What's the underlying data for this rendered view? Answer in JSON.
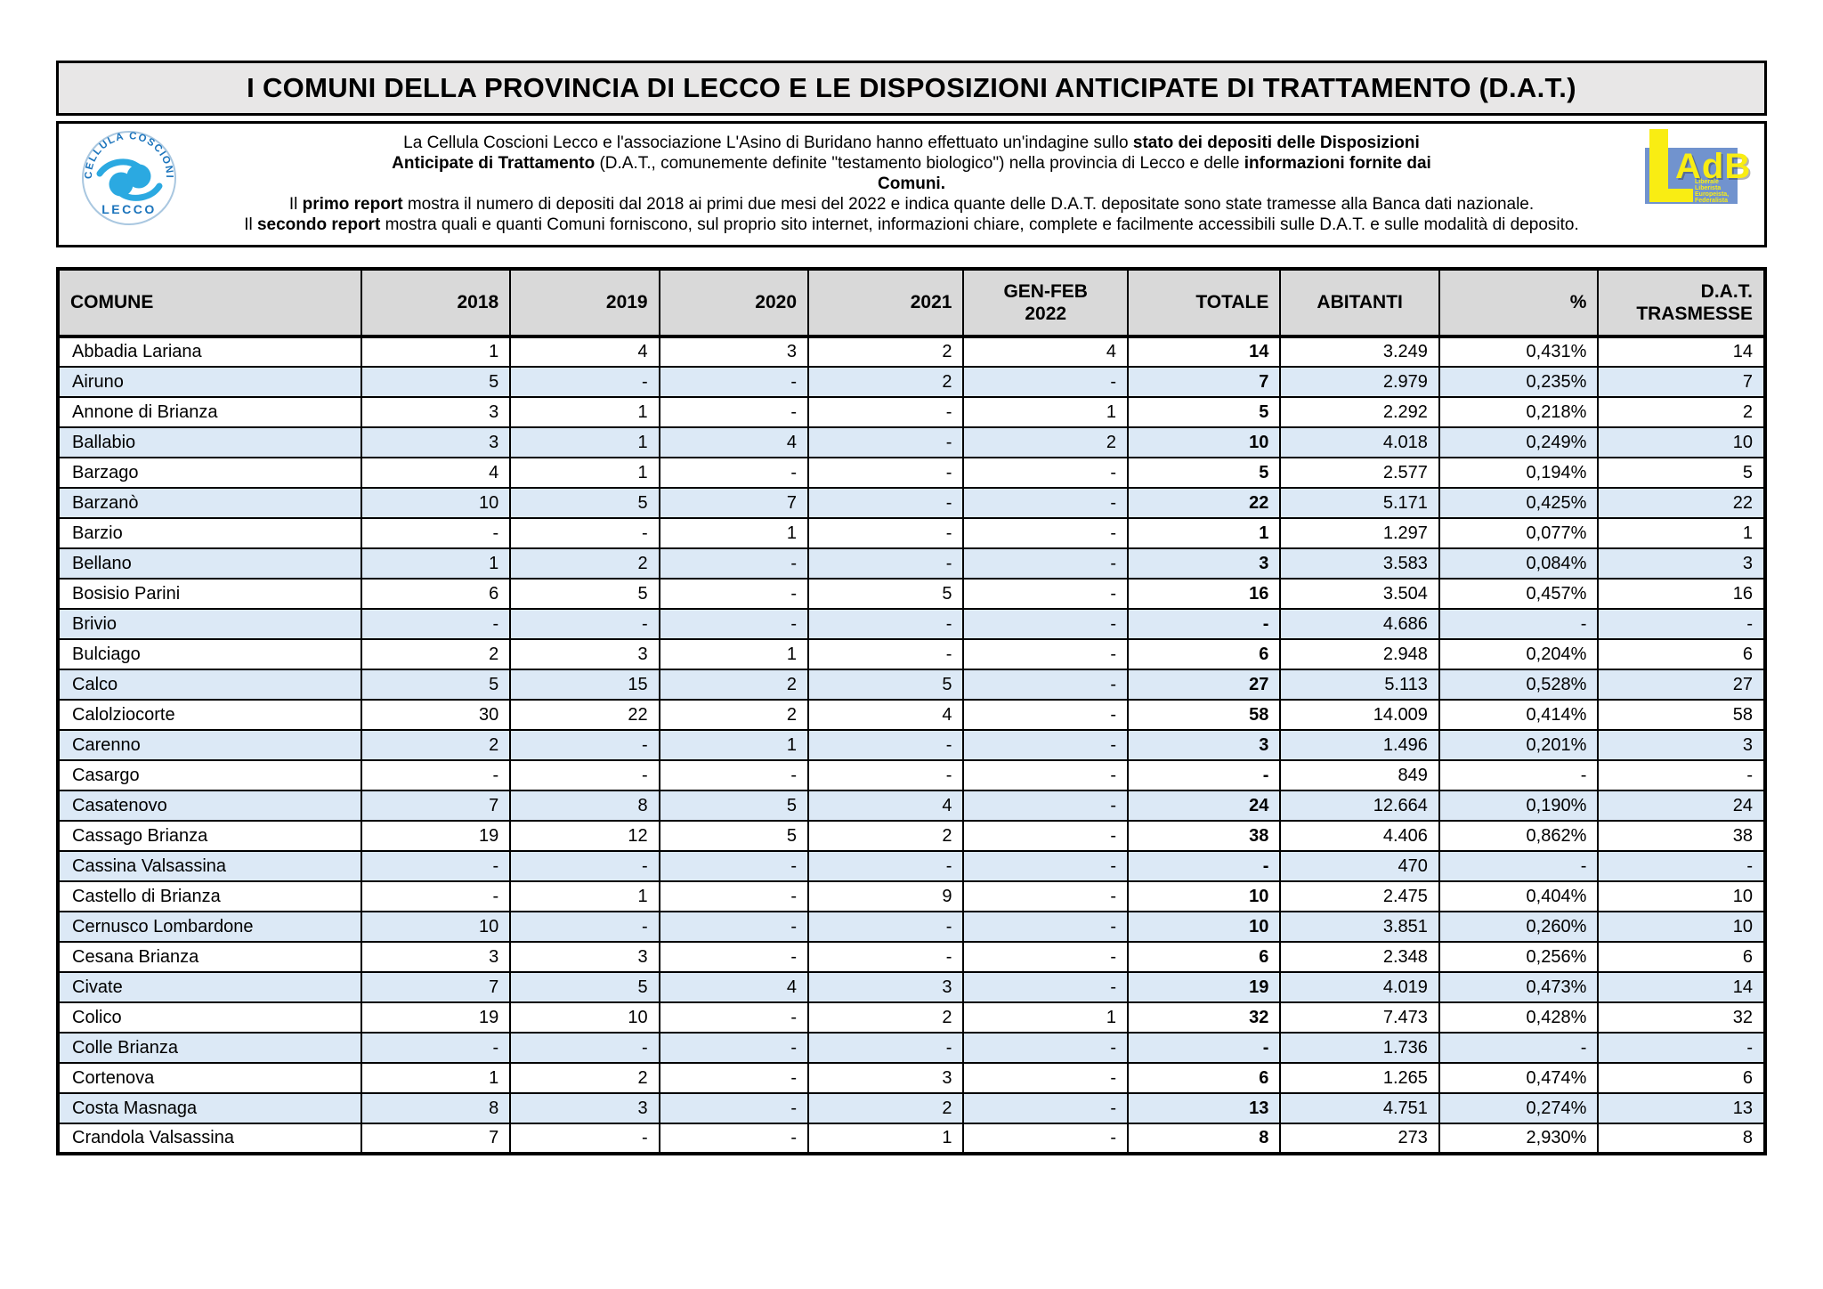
{
  "title": "I COMUNI DELLA PROVINCIA DI LECCO E LE DISPOSIZIONI ANTICIPATE DI TRATTAMENTO (D.A.T.)",
  "logos": {
    "cellula": {
      "arc_text": "CELLULA COSCIONI",
      "bottom_text": "LECCO"
    },
    "adb": {
      "letter_l": "L",
      "name": "AdB",
      "lines": [
        "Liberale",
        "Liberista",
        "Europeista,",
        "Federalista"
      ]
    }
  },
  "intro": {
    "paragraphs": [
      [
        {
          "t": "La Cellula Coscioni Lecco e l'associazione L'Asino di Buridano hanno effettuato un'indagine sullo "
        },
        {
          "t": "stato dei depositi delle Disposizioni Anticipate di Trattamento",
          "b": true
        },
        {
          "t": " (D.A.T., comunemente definite \"testamento biologico\") nella provincia di Lecco e delle "
        },
        {
          "t": "informazioni fornite dai Comuni.",
          "b": true
        }
      ],
      [
        {
          "t": "Il "
        },
        {
          "t": "primo report",
          "b": true
        },
        {
          "t": " mostra il numero di depositi dal 2018 ai primi due mesi del 2022 e indica quante delle D.A.T. depositate sono state tramesse alla Banca dati nazionale."
        }
      ],
      [
        {
          "t": "Il "
        },
        {
          "t": "secondo report",
          "b": true
        },
        {
          "t": " mostra quali e quanti Comuni forniscono, sul proprio sito internet, informazioni chiare, complete e facilmente accessibili sulle D.A.T. e sulle modalità di deposito."
        }
      ]
    ]
  },
  "table": {
    "headers": [
      {
        "label": "COMUNE"
      },
      {
        "label": "2018"
      },
      {
        "label": "2019"
      },
      {
        "label": "2020"
      },
      {
        "label": "2021"
      },
      {
        "label": "GEN-FEB\n2022"
      },
      {
        "label": "TOTALE"
      },
      {
        "label": "ABITANTI"
      },
      {
        "label": "%"
      },
      {
        "label": "D.A.T.\nTRASMESSE"
      }
    ],
    "rows": [
      {
        "comune": "Abbadia Lariana",
        "values": [
          "1",
          "4",
          "3",
          "2",
          "4",
          "14",
          "3.249",
          "0,431%",
          "14"
        ]
      },
      {
        "comune": "Airuno",
        "values": [
          "5",
          "-",
          "-",
          "2",
          "-",
          "7",
          "2.979",
          "0,235%",
          "7"
        ]
      },
      {
        "comune": "Annone di Brianza",
        "values": [
          "3",
          "1",
          "-",
          "-",
          "1",
          "5",
          "2.292",
          "0,218%",
          "2"
        ]
      },
      {
        "comune": "Ballabio",
        "values": [
          "3",
          "1",
          "4",
          "-",
          "2",
          "10",
          "4.018",
          "0,249%",
          "10"
        ]
      },
      {
        "comune": "Barzago",
        "values": [
          "4",
          "1",
          "-",
          "-",
          "-",
          "5",
          "2.577",
          "0,194%",
          "5"
        ]
      },
      {
        "comune": "Barzanò",
        "values": [
          "10",
          "5",
          "7",
          "-",
          "-",
          "22",
          "5.171",
          "0,425%",
          "22"
        ]
      },
      {
        "comune": "Barzio",
        "values": [
          "-",
          "-",
          "1",
          "-",
          "-",
          "1",
          "1.297",
          "0,077%",
          "1"
        ]
      },
      {
        "comune": "Bellano",
        "values": [
          "1",
          "2",
          "-",
          "-",
          "-",
          "3",
          "3.583",
          "0,084%",
          "3"
        ]
      },
      {
        "comune": "Bosisio Parini",
        "values": [
          "6",
          "5",
          "-",
          "5",
          "-",
          "16",
          "3.504",
          "0,457%",
          "16"
        ]
      },
      {
        "comune": "Brivio",
        "values": [
          "-",
          "-",
          "-",
          "-",
          "-",
          "-",
          "4.686",
          "-",
          "-"
        ]
      },
      {
        "comune": "Bulciago",
        "values": [
          "2",
          "3",
          "1",
          "-",
          "-",
          "6",
          "2.948",
          "0,204%",
          "6"
        ]
      },
      {
        "comune": "Calco",
        "values": [
          "5",
          "15",
          "2",
          "5",
          "-",
          "27",
          "5.113",
          "0,528%",
          "27"
        ]
      },
      {
        "comune": "Calolziocorte",
        "values": [
          "30",
          "22",
          "2",
          "4",
          "-",
          "58",
          "14.009",
          "0,414%",
          "58"
        ]
      },
      {
        "comune": "Carenno",
        "values": [
          "2",
          "-",
          "1",
          "-",
          "-",
          "3",
          "1.496",
          "0,201%",
          "3"
        ]
      },
      {
        "comune": "Casargo",
        "values": [
          "-",
          "-",
          "-",
          "-",
          "-",
          "-",
          "849",
          "-",
          "-"
        ]
      },
      {
        "comune": "Casatenovo",
        "values": [
          "7",
          "8",
          "5",
          "4",
          "-",
          "24",
          "12.664",
          "0,190%",
          "24"
        ]
      },
      {
        "comune": "Cassago Brianza",
        "values": [
          "19",
          "12",
          "5",
          "2",
          "-",
          "38",
          "4.406",
          "0,862%",
          "38"
        ]
      },
      {
        "comune": "Cassina Valsassina",
        "values": [
          "-",
          "-",
          "-",
          "-",
          "-",
          "-",
          "470",
          "-",
          "-"
        ]
      },
      {
        "comune": "Castello di Brianza",
        "values": [
          "-",
          "1",
          "-",
          "9",
          "-",
          "10",
          "2.475",
          "0,404%",
          "10"
        ]
      },
      {
        "comune": "Cernusco Lombardone",
        "values": [
          "10",
          "-",
          "-",
          "-",
          "-",
          "10",
          "3.851",
          "0,260%",
          "10"
        ]
      },
      {
        "comune": "Cesana Brianza",
        "values": [
          "3",
          "3",
          "-",
          "-",
          "-",
          "6",
          "2.348",
          "0,256%",
          "6"
        ]
      },
      {
        "comune": "Civate",
        "values": [
          "7",
          "5",
          "4",
          "3",
          "-",
          "19",
          "4.019",
          "0,473%",
          "14"
        ]
      },
      {
        "comune": "Colico",
        "values": [
          "19",
          "10",
          "-",
          "2",
          "1",
          "32",
          "7.473",
          "0,428%",
          "32"
        ]
      },
      {
        "comune": "Colle Brianza",
        "values": [
          "-",
          "-",
          "-",
          "-",
          "-",
          "-",
          "1.736",
          "-",
          "-"
        ]
      },
      {
        "comune": "Cortenova",
        "values": [
          "1",
          "2",
          "-",
          "3",
          "-",
          "6",
          "1.265",
          "0,474%",
          "6"
        ]
      },
      {
        "comune": "Costa Masnaga",
        "values": [
          "8",
          "3",
          "-",
          "2",
          "-",
          "13",
          "4.751",
          "0,274%",
          "13"
        ]
      },
      {
        "comune": "Crandola Valsassina",
        "values": [
          "7",
          "-",
          "-",
          "1",
          "-",
          "8",
          "273",
          "2,930%",
          "8"
        ]
      }
    ]
  },
  "colors": {
    "header_bg": "#D9D9D9",
    "title_bg": "#E8E7E7",
    "row_alt_blue": "#DCE9F6",
    "border": "#000000",
    "coscioni_blue": "#2BA9E1",
    "coscioni_text_blue": "#1B74BC",
    "adb_rect_blue": "#7193CE",
    "adb_yellow": "#F9ED13"
  }
}
